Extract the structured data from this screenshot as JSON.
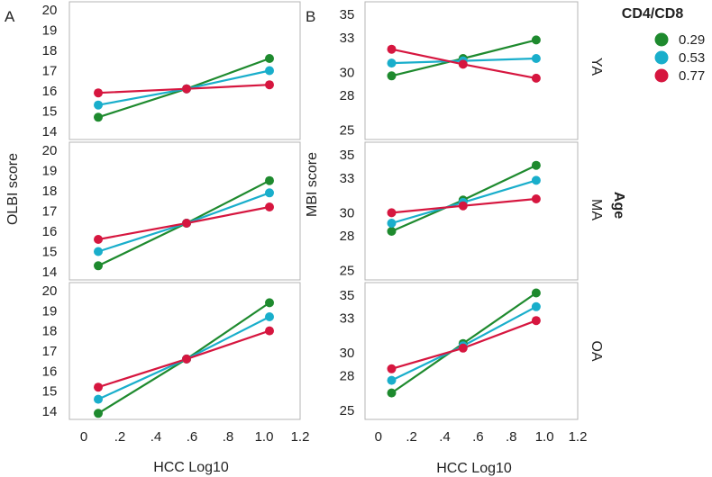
{
  "chart_data": {
    "type": "line",
    "legend": {
      "title": "CD4/CD8",
      "position": "top-right",
      "entries": [
        {
          "name": "0.29",
          "color": "#1e8a2e"
        },
        {
          "name": "0.53",
          "color": "#19aecb"
        },
        {
          "name": "0.77",
          "color": "#d6163f"
        }
      ]
    },
    "facet_label": "Age",
    "row_labels": [
      "YA",
      "MA",
      "OA"
    ],
    "panels": [
      {
        "letter": "A",
        "ylabel": "OLBI score",
        "xlabel": "HCC  Log10",
        "xlim": [
          -0.08,
          1.2
        ],
        "xticks": [
          0,
          0.2,
          0.4,
          0.6,
          0.8,
          1.0,
          1.2
        ],
        "xtick_labels": [
          "0",
          ".2",
          ".4",
          ".6",
          ".8",
          "1.0",
          "1.2"
        ],
        "ylim": [
          13.6,
          20.4
        ],
        "yticks": [
          14,
          15,
          16,
          17,
          18,
          19,
          20
        ],
        "ytick_labels": [
          "14",
          "15",
          "16",
          "17",
          "18",
          "19",
          "20"
        ],
        "x": [
          0.08,
          0.57,
          1.03
        ],
        "rows": [
          {
            "series": [
              {
                "name": "0.29",
                "values": [
                  14.7,
                  16.1,
                  17.6
                ]
              },
              {
                "name": "0.53",
                "values": [
                  15.3,
                  16.1,
                  17.0
                ]
              },
              {
                "name": "0.77",
                "values": [
                  15.9,
                  16.1,
                  16.3
                ]
              }
            ]
          },
          {
            "series": [
              {
                "name": "0.29",
                "values": [
                  14.3,
                  16.4,
                  18.5
                ]
              },
              {
                "name": "0.53",
                "values": [
                  15.0,
                  16.4,
                  17.9
                ]
              },
              {
                "name": "0.77",
                "values": [
                  15.6,
                  16.4,
                  17.2
                ]
              }
            ]
          },
          {
            "series": [
              {
                "name": "0.29",
                "values": [
                  13.9,
                  16.6,
                  19.4
                ]
              },
              {
                "name": "0.53",
                "values": [
                  14.6,
                  16.6,
                  18.7
                ]
              },
              {
                "name": "0.77",
                "values": [
                  15.2,
                  16.6,
                  18.0
                ]
              }
            ]
          }
        ]
      },
      {
        "letter": "B",
        "ylabel": "MBI score",
        "xlabel": "HCC  Log10",
        "xlim": [
          -0.08,
          1.2
        ],
        "xticks": [
          0,
          0.2,
          0.4,
          0.6,
          0.8,
          1.0,
          1.2
        ],
        "xtick_labels": [
          "0",
          ".2",
          ".4",
          ".6",
          ".8",
          "1.0",
          "1.2"
        ],
        "ylim": [
          24.2,
          36.1
        ],
        "yticks": [
          25,
          28,
          30,
          33,
          35
        ],
        "ytick_labels": [
          "25",
          "28",
          "30",
          "33",
          "35"
        ],
        "x": [
          0.08,
          0.51,
          0.95
        ],
        "rows": [
          {
            "series": [
              {
                "name": "0.29",
                "values": [
                  29.7,
                  31.2,
                  32.8
                ]
              },
              {
                "name": "0.53",
                "values": [
                  30.8,
                  31.0,
                  31.2
                ]
              },
              {
                "name": "0.77",
                "values": [
                  32.0,
                  30.7,
                  29.5
                ]
              }
            ]
          },
          {
            "series": [
              {
                "name": "0.29",
                "values": [
                  28.4,
                  31.1,
                  34.1
                ]
              },
              {
                "name": "0.53",
                "values": [
                  29.1,
                  30.9,
                  32.8
                ]
              },
              {
                "name": "0.77",
                "values": [
                  30.0,
                  30.6,
                  31.2
                ]
              }
            ]
          },
          {
            "series": [
              {
                "name": "0.29",
                "values": [
                  26.5,
                  30.8,
                  35.2
                ]
              },
              {
                "name": "0.53",
                "values": [
                  27.6,
                  30.6,
                  34.0
                ]
              },
              {
                "name": "0.77",
                "values": [
                  28.6,
                  30.4,
                  32.8
                ]
              }
            ]
          }
        ]
      }
    ]
  }
}
